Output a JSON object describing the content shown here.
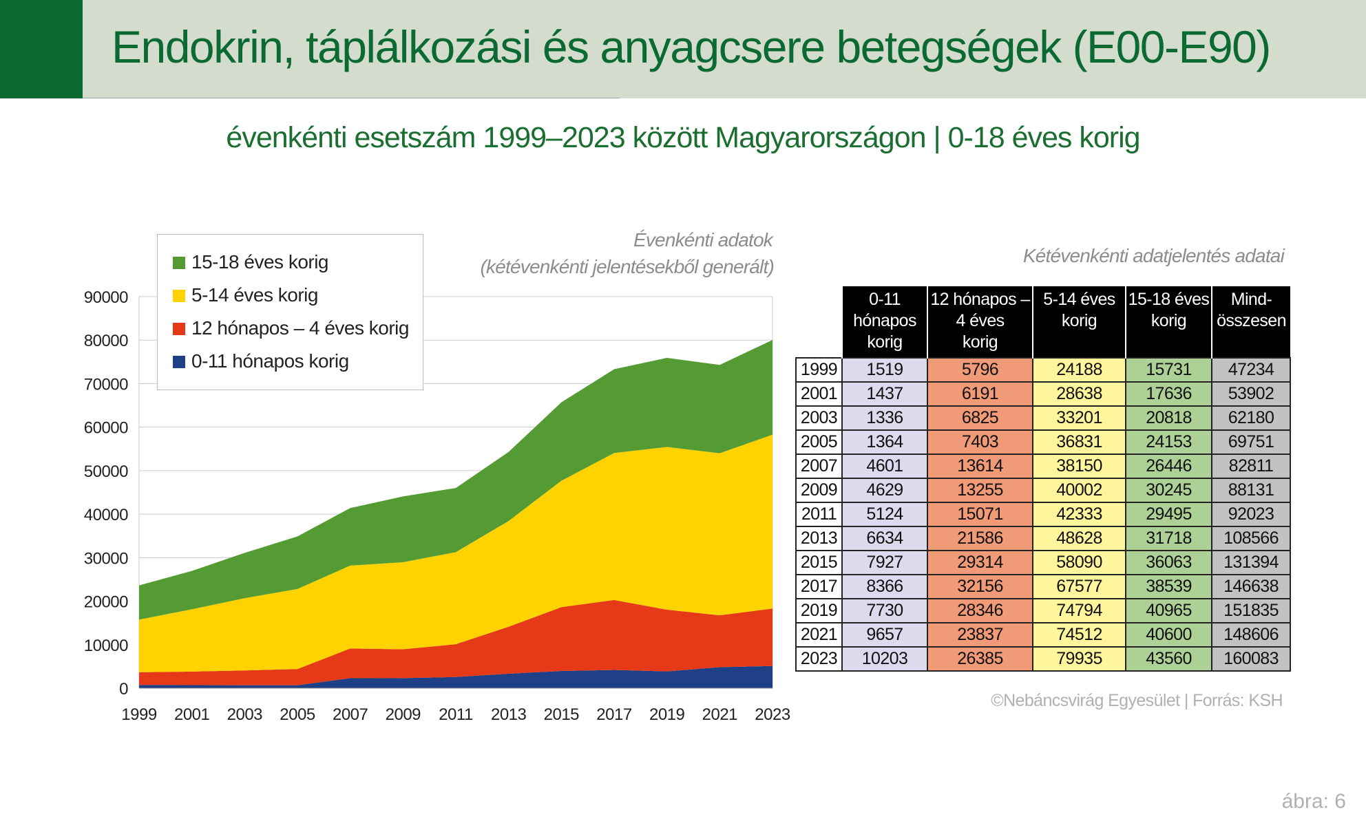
{
  "header": {
    "title": "Endokrin, táplálkozási és anyagcsere betegségek (E00-E90)",
    "subtitle": "évenkénti esetszám 1999–2023 között Magyarországon  |  0-18 éves korig",
    "accent_color": "#0b6a32"
  },
  "chart_notes": {
    "line1": "Évenkénti adatok",
    "line2": "(kétévenkénti jelentésekből generált)"
  },
  "chart_data": {
    "type": "area",
    "stacked": true,
    "x": [
      1999,
      2001,
      2003,
      2005,
      2007,
      2009,
      2011,
      2013,
      2015,
      2017,
      2019,
      2021,
      2023
    ],
    "xticks": [
      "1999",
      "2001",
      "2003",
      "2005",
      "2007",
      "2009",
      "2011",
      "2013",
      "2015",
      "2017",
      "2019",
      "2021",
      "2023"
    ],
    "yticks": [
      "0",
      "10000",
      "20000",
      "30000",
      "40000",
      "50000",
      "60000",
      "70000",
      "80000",
      "90000"
    ],
    "ylim": [
      0,
      90000
    ],
    "grid": true,
    "legend_position": "top-left",
    "series": [
      {
        "name": "0-11 hónapos korig",
        "color": "#1f3f86",
        "values": [
          760,
          719,
          668,
          682,
          2301,
          2315,
          2562,
          3317,
          3964,
          4183,
          3865,
          4829,
          5102
        ]
      },
      {
        "name": "12 hónapos – 4 éves korig",
        "color": "#e53917",
        "values": [
          2898,
          3096,
          3413,
          3702,
          6807,
          6628,
          7536,
          10793,
          14657,
          16078,
          14173,
          11919,
          13193
        ]
      },
      {
        "name": "5-14 éves korig",
        "color": "#ffd200",
        "values": [
          12094,
          14319,
          16601,
          18416,
          19075,
          20001,
          21167,
          24314,
          29045,
          33789,
          37397,
          37256,
          39968
        ]
      },
      {
        "name": "15-18 éves korig",
        "color": "#549b34",
        "values": [
          7866,
          8818,
          10409,
          12077,
          13223,
          15123,
          14748,
          15859,
          18032,
          19270,
          20483,
          20300,
          21780
        ]
      }
    ]
  },
  "table": {
    "title": "Kétévenkénti adatjelentés adatai",
    "headers": [
      "0-11\nhónapos\nkorig",
      "12 hónapos –\n4 éves\nkorig",
      "5-14 éves\nkorig",
      "15-18 éves\nkorig",
      "Mind-\nösszesen"
    ],
    "rows": [
      [
        "1999",
        "1519",
        "5796",
        "24188",
        "15731",
        "47234"
      ],
      [
        "2001",
        "1437",
        "6191",
        "28638",
        "17636",
        "53902"
      ],
      [
        "2003",
        "1336",
        "6825",
        "33201",
        "20818",
        "62180"
      ],
      [
        "2005",
        "1364",
        "7403",
        "36831",
        "24153",
        "69751"
      ],
      [
        "2007",
        "4601",
        "13614",
        "38150",
        "26446",
        "82811"
      ],
      [
        "2009",
        "4629",
        "13255",
        "40002",
        "30245",
        "88131"
      ],
      [
        "2011",
        "5124",
        "15071",
        "42333",
        "29495",
        "92023"
      ],
      [
        "2013",
        "6634",
        "21586",
        "48628",
        "31718",
        "108566"
      ],
      [
        "2015",
        "7927",
        "29314",
        "58090",
        "36063",
        "131394"
      ],
      [
        "2017",
        "8366",
        "32156",
        "67577",
        "38539",
        "146638"
      ],
      [
        "2019",
        "7730",
        "28346",
        "74794",
        "40965",
        "151835"
      ],
      [
        "2021",
        "9657",
        "23837",
        "74512",
        "40600",
        "148606"
      ],
      [
        "2023",
        "10203",
        "26385",
        "79935",
        "43560",
        "160083"
      ]
    ]
  },
  "footer": {
    "credit": "©Nebáncsvirág Egyesület  |  Forrás: KSH",
    "figure_label": "ábra: 6"
  }
}
